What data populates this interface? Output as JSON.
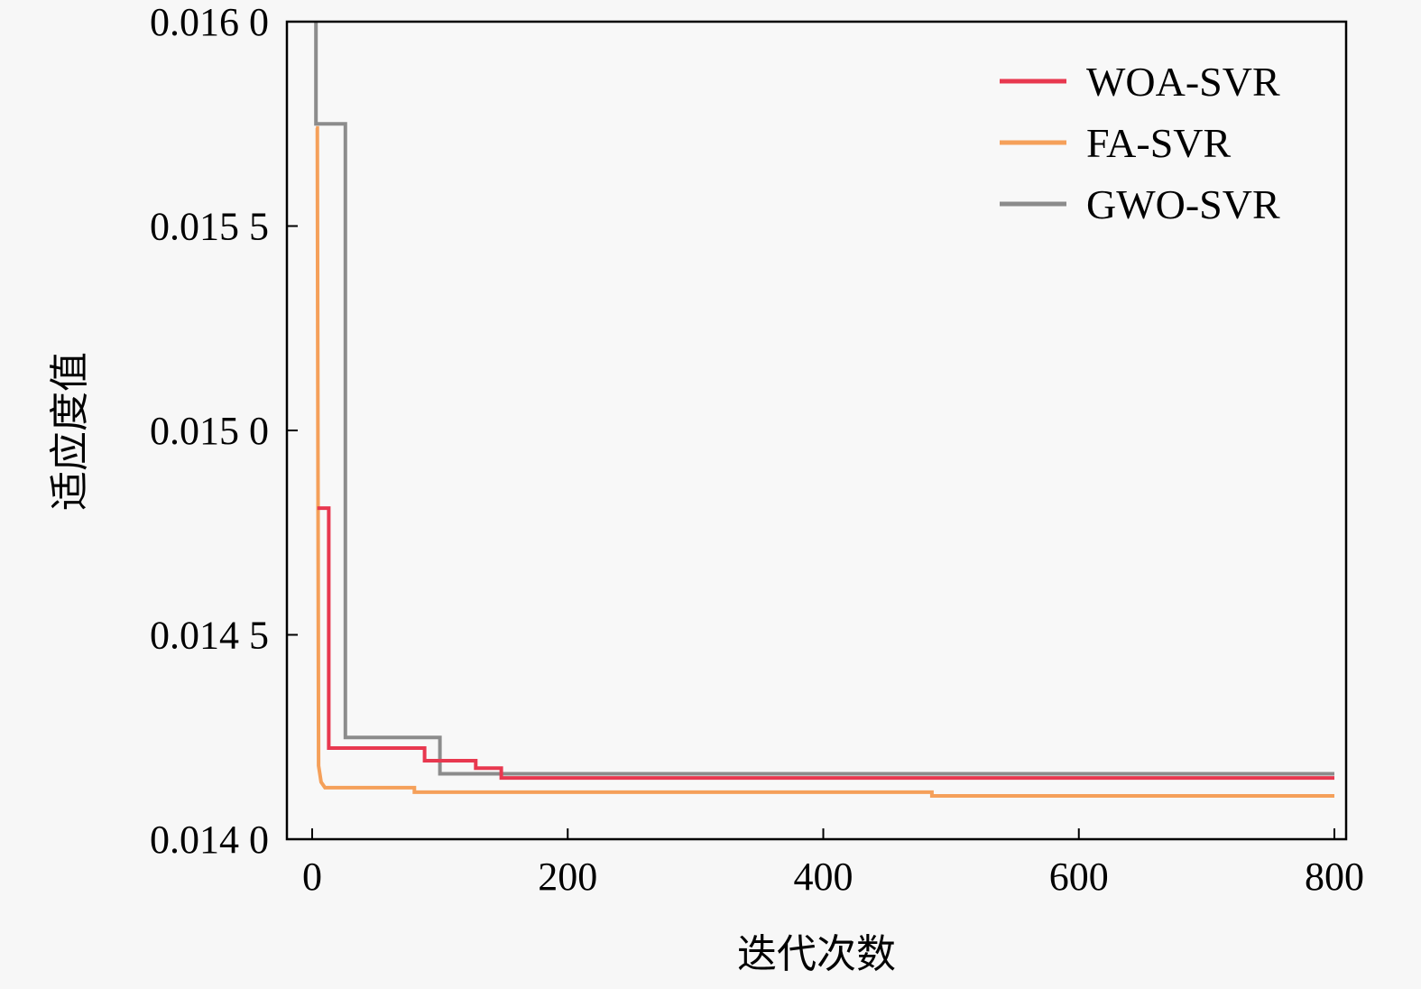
{
  "chart_data": {
    "type": "line",
    "title": "",
    "xlabel": "迭代次数",
    "ylabel": "适应度值",
    "xlim": [
      -20,
      810
    ],
    "ylim": [
      0.014,
      0.016
    ],
    "x_ticks": [
      0,
      200,
      400,
      600,
      800
    ],
    "x_tick_labels": [
      "0",
      "200",
      "400",
      "600",
      "800"
    ],
    "y_ticks": [
      0.014,
      0.0145,
      0.015,
      0.0155,
      0.016
    ],
    "y_tick_labels": [
      "0.014 0",
      "0.014 5",
      "0.015 0",
      "0.015 5",
      "0.016 0"
    ],
    "grid": false,
    "legend_position": "top-right",
    "line_style": "step",
    "series": [
      {
        "name": "WOA-SVR",
        "color": "#e8384f",
        "x": [
          4,
          13,
          13,
          88,
          88,
          128,
          128,
          148,
          148,
          800
        ],
        "y": [
          0.01481,
          0.01481,
          0.014223,
          0.014223,
          0.014192,
          0.014192,
          0.014174,
          0.014174,
          0.01415,
          0.01415
        ]
      },
      {
        "name": "FA-SVR",
        "color": "#f5a05a",
        "x": [
          3,
          4,
          5,
          7,
          10,
          80,
          80,
          485,
          485,
          800
        ],
        "y": [
          0.01574,
          0.01574,
          0.01418,
          0.01414,
          0.014126,
          0.014126,
          0.014115,
          0.014115,
          0.014106,
          0.014106
        ]
      },
      {
        "name": "GWO-SVR",
        "color": "#8c8c8c",
        "x": [
          3,
          3,
          26,
          26,
          100,
          100,
          800
        ],
        "y": [
          0.016,
          0.01575,
          0.01575,
          0.014249,
          0.014249,
          0.01416,
          0.01416
        ]
      }
    ]
  }
}
